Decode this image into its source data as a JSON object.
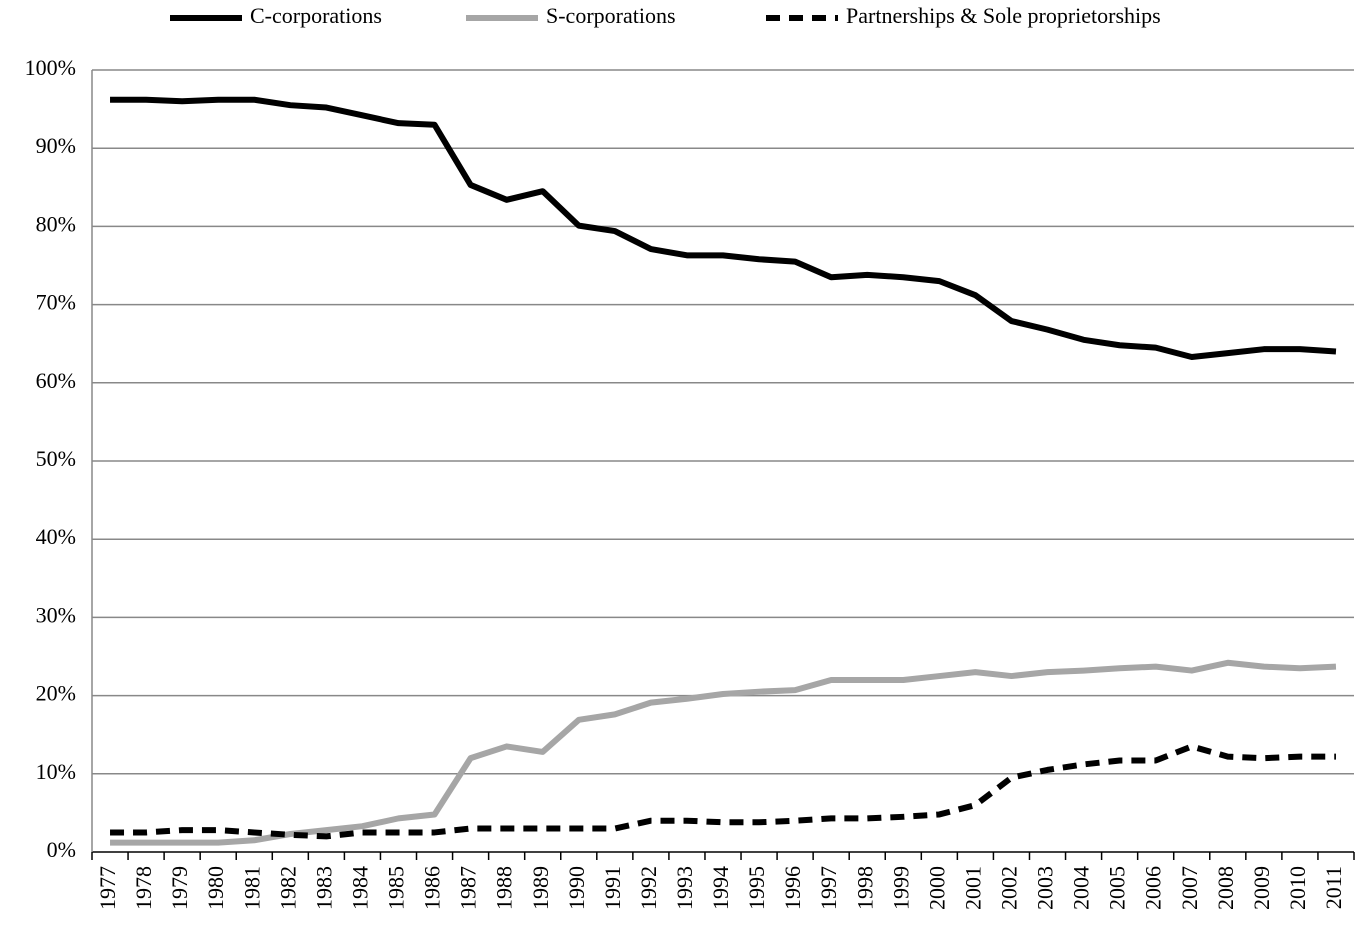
{
  "chart_data": {
    "type": "line",
    "categories": [
      "1977",
      "1978",
      "1979",
      "1980",
      "1981",
      "1982",
      "1983",
      "1984",
      "1985",
      "1986",
      "1987",
      "1988",
      "1989",
      "1990",
      "1991",
      "1992",
      "1993",
      "1994",
      "1995",
      "1996",
      "1997",
      "1998",
      "1999",
      "2000",
      "2001",
      "2002",
      "2003",
      "2004",
      "2005",
      "2006",
      "2007",
      "2008",
      "2009",
      "2010",
      "2011"
    ],
    "series": [
      {
        "name": "C-corporations",
        "color": "#000000",
        "dashed": false,
        "values": [
          96.2,
          96.2,
          96,
          96.2,
          96.2,
          95.5,
          95.2,
          94.2,
          93.2,
          93,
          85.3,
          83.4,
          84.5,
          80.1,
          79.4,
          77.1,
          76.3,
          76.3,
          75.8,
          75.5,
          73.5,
          73.8,
          73.5,
          73,
          71.2,
          67.9,
          66.8,
          65.5,
          64.8,
          64.5,
          63.3,
          63.8,
          64.3,
          64.3,
          64
        ]
      },
      {
        "name": "S-corporations",
        "color": "#a6a6a6",
        "dashed": false,
        "values": [
          1.2,
          1.2,
          1.2,
          1.2,
          1.5,
          2.3,
          2.8,
          3.3,
          4.3,
          4.8,
          12,
          13.5,
          12.8,
          16.9,
          17.6,
          19.1,
          19.6,
          20.2,
          20.5,
          20.7,
          22,
          22,
          22,
          22.5,
          23,
          22.5,
          23,
          23.2,
          23.5,
          23.7,
          23.2,
          24.2,
          23.7,
          23.5,
          23.7
        ]
      },
      {
        "name": "Partnerships & Sole proprietorships",
        "color": "#000000",
        "dashed": true,
        "values": [
          2.5,
          2.5,
          2.8,
          2.8,
          2.5,
          2.2,
          2,
          2.5,
          2.5,
          2.5,
          3,
          3,
          3,
          3,
          3,
          4,
          4,
          3.8,
          3.8,
          4,
          4.3,
          4.3,
          4.5,
          4.8,
          6,
          9.5,
          10.5,
          11.2,
          11.7,
          11.7,
          13.5,
          12.2,
          12,
          12.2,
          12.2
        ]
      }
    ],
    "ylim": [
      0,
      100
    ],
    "yticks": [
      {
        "value": 0,
        "label": "0%"
      },
      {
        "value": 10,
        "label": "10%"
      },
      {
        "value": 20,
        "label": "20%"
      },
      {
        "value": 30,
        "label": "30%"
      },
      {
        "value": 40,
        "label": "40%"
      },
      {
        "value": 50,
        "label": "50%"
      },
      {
        "value": 60,
        "label": "60%"
      },
      {
        "value": 70,
        "label": "70%"
      },
      {
        "value": 80,
        "label": "80%"
      },
      {
        "value": 90,
        "label": "90%"
      },
      {
        "value": 100,
        "label": "100%"
      }
    ],
    "grid": true,
    "legend": "top"
  }
}
